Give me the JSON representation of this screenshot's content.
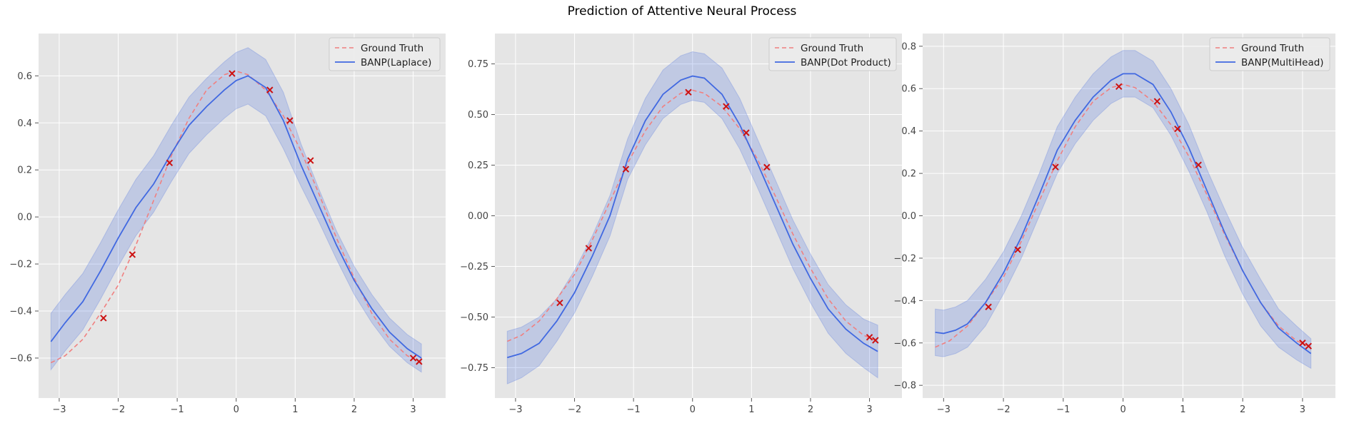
{
  "figure": {
    "title": "Prediction of Attentive Neural Process"
  },
  "style": {
    "plot_bg": "#e5e5e5",
    "grid": "#ffffff",
    "ground_truth_color": "#f08080",
    "prediction_color": "#4169e1",
    "band_color": "#4169e1",
    "context_color": "#cc1111"
  },
  "chart_data": [
    {
      "type": "line",
      "title": "",
      "xlabel": "",
      "ylabel": "",
      "xlim": [
        -3.35,
        3.55
      ],
      "ylim": [
        -0.77,
        0.78
      ],
      "xticks": [
        -3,
        -2,
        -1,
        0,
        1,
        2,
        3
      ],
      "yticks": [
        -0.6,
        -0.4,
        -0.2,
        0.0,
        0.2,
        0.4,
        0.6
      ],
      "ytick_labels": [
        "−0.6",
        "−0.4",
        "−0.2",
        "0.0",
        "0.2",
        "0.4",
        "0.6"
      ],
      "grid": true,
      "legend": {
        "placement": "top-right",
        "entries": [
          "Ground Truth",
          "BANP(Laplace)"
        ]
      },
      "ground_truth": {
        "name": "Ground Truth",
        "x": [
          -3.14,
          -2.9,
          -2.6,
          -2.3,
          -2.0,
          -1.7,
          -1.4,
          -1.1,
          -0.8,
          -0.5,
          -0.2,
          0.0,
          0.2,
          0.5,
          0.8,
          1.1,
          1.4,
          1.7,
          2.0,
          2.3,
          2.6,
          2.9,
          3.14
        ],
        "y": [
          -0.62,
          -0.59,
          -0.52,
          -0.41,
          -0.29,
          -0.12,
          0.07,
          0.26,
          0.42,
          0.54,
          0.605,
          0.62,
          0.605,
          0.54,
          0.43,
          0.28,
          0.1,
          -0.09,
          -0.26,
          -0.41,
          -0.52,
          -0.59,
          -0.62
        ]
      },
      "prediction": {
        "name": "BANP(Laplace)",
        "x": [
          -3.14,
          -2.9,
          -2.6,
          -2.3,
          -2.0,
          -1.7,
          -1.4,
          -1.1,
          -0.8,
          -0.5,
          -0.2,
          0.0,
          0.2,
          0.5,
          0.8,
          1.1,
          1.4,
          1.7,
          2.0,
          2.3,
          2.6,
          2.9,
          3.14
        ],
        "y": [
          -0.53,
          -0.45,
          -0.36,
          -0.23,
          -0.09,
          0.04,
          0.14,
          0.27,
          0.39,
          0.47,
          0.54,
          0.58,
          0.6,
          0.55,
          0.41,
          0.22,
          0.05,
          -0.12,
          -0.27,
          -0.39,
          -0.49,
          -0.56,
          -0.6
        ],
        "std": [
          0.12,
          0.12,
          0.12,
          0.12,
          0.12,
          0.12,
          0.12,
          0.12,
          0.12,
          0.12,
          0.12,
          0.12,
          0.12,
          0.12,
          0.12,
          0.09,
          0.07,
          0.06,
          0.06,
          0.06,
          0.06,
          0.06,
          0.06
        ]
      },
      "context_points": {
        "x": [
          -2.25,
          -1.76,
          -1.13,
          -0.07,
          0.57,
          0.91,
          1.26,
          3.0,
          3.1
        ],
        "y": [
          -0.43,
          -0.16,
          0.23,
          0.61,
          0.54,
          0.41,
          0.24,
          -0.6,
          -0.615
        ]
      }
    },
    {
      "type": "line",
      "title": "",
      "xlabel": "",
      "ylabel": "",
      "xlim": [
        -3.35,
        3.55
      ],
      "ylim": [
        -0.9,
        0.9
      ],
      "xticks": [
        -3,
        -2,
        -1,
        0,
        1,
        2,
        3
      ],
      "yticks": [
        -0.75,
        -0.5,
        -0.25,
        0.0,
        0.25,
        0.5,
        0.75
      ],
      "ytick_labels": [
        "−0.75",
        "−0.50",
        "−0.25",
        "0.00",
        "0.25",
        "0.50",
        "0.75"
      ],
      "grid": true,
      "legend": {
        "placement": "top-right",
        "entries": [
          "Ground Truth",
          "BANP(Dot Product)"
        ]
      },
      "ground_truth": {
        "name": "Ground Truth",
        "x": [
          -3.14,
          -2.9,
          -2.6,
          -2.3,
          -2.0,
          -1.7,
          -1.4,
          -1.1,
          -0.8,
          -0.5,
          -0.2,
          0.0,
          0.2,
          0.5,
          0.8,
          1.1,
          1.4,
          1.7,
          2.0,
          2.3,
          2.6,
          2.9,
          3.14
        ],
        "y": [
          -0.62,
          -0.59,
          -0.52,
          -0.41,
          -0.29,
          -0.12,
          0.07,
          0.26,
          0.42,
          0.54,
          0.605,
          0.62,
          0.605,
          0.54,
          0.43,
          0.28,
          0.1,
          -0.09,
          -0.26,
          -0.41,
          -0.52,
          -0.59,
          -0.62
        ]
      },
      "prediction": {
        "name": "BANP(Dot Product)",
        "x": [
          -3.14,
          -2.9,
          -2.6,
          -2.3,
          -2.0,
          -1.7,
          -1.4,
          -1.1,
          -0.8,
          -0.5,
          -0.2,
          0.0,
          0.2,
          0.5,
          0.8,
          1.1,
          1.4,
          1.7,
          2.0,
          2.3,
          2.6,
          2.9,
          3.14
        ],
        "y": [
          -0.7,
          -0.68,
          -0.63,
          -0.52,
          -0.38,
          -0.2,
          0.0,
          0.28,
          0.47,
          0.6,
          0.67,
          0.69,
          0.68,
          0.6,
          0.45,
          0.26,
          0.06,
          -0.14,
          -0.31,
          -0.46,
          -0.56,
          -0.63,
          -0.67
        ]
      },
      "band": {
        "x": [
          -3.14,
          -2.9,
          -2.6,
          -2.3,
          -2.0,
          -1.7,
          -1.4,
          -1.1,
          -0.8,
          -0.5,
          -0.2,
          0.0,
          0.2,
          0.5,
          0.8,
          1.1,
          1.4,
          1.7,
          2.0,
          2.3,
          2.6,
          2.9,
          3.14
        ],
        "lower": [
          -0.83,
          -0.8,
          -0.74,
          -0.62,
          -0.48,
          -0.3,
          -0.1,
          0.18,
          0.35,
          0.48,
          0.55,
          0.57,
          0.56,
          0.48,
          0.33,
          0.14,
          -0.06,
          -0.26,
          -0.43,
          -0.58,
          -0.68,
          -0.75,
          -0.8
        ],
        "upper": [
          -0.57,
          -0.55,
          -0.5,
          -0.41,
          -0.27,
          -0.1,
          0.1,
          0.38,
          0.58,
          0.72,
          0.79,
          0.81,
          0.8,
          0.73,
          0.58,
          0.38,
          0.18,
          -0.02,
          -0.19,
          -0.34,
          -0.44,
          -0.51,
          -0.54
        ]
      },
      "context_points": {
        "x": [
          -2.25,
          -1.76,
          -1.13,
          -0.07,
          0.57,
          0.91,
          1.26,
          3.0,
          3.1
        ],
        "y": [
          -0.43,
          -0.16,
          0.23,
          0.61,
          0.54,
          0.41,
          0.24,
          -0.6,
          -0.615
        ]
      }
    },
    {
      "type": "line",
      "title": "",
      "xlabel": "",
      "ylabel": "",
      "xlim": [
        -3.35,
        3.55
      ],
      "ylim": [
        -0.86,
        0.86
      ],
      "xticks": [
        -3,
        -2,
        -1,
        0,
        1,
        2,
        3
      ],
      "yticks": [
        -0.8,
        -0.6,
        -0.4,
        -0.2,
        0.0,
        0.2,
        0.4,
        0.6,
        0.8
      ],
      "ytick_labels": [
        "−0.8",
        "−0.6",
        "−0.4",
        "−0.2",
        "0.0",
        "0.2",
        "0.4",
        "0.6",
        "0.8"
      ],
      "grid": true,
      "legend": {
        "placement": "top-right",
        "entries": [
          "Ground Truth",
          "BANP(MultiHead)"
        ]
      },
      "ground_truth": {
        "name": "Ground Truth",
        "x": [
          -3.14,
          -2.9,
          -2.6,
          -2.3,
          -2.0,
          -1.7,
          -1.4,
          -1.1,
          -0.8,
          -0.5,
          -0.2,
          0.0,
          0.2,
          0.5,
          0.8,
          1.1,
          1.4,
          1.7,
          2.0,
          2.3,
          2.6,
          2.9,
          3.14
        ],
        "y": [
          -0.62,
          -0.59,
          -0.52,
          -0.41,
          -0.29,
          -0.12,
          0.07,
          0.26,
          0.42,
          0.54,
          0.605,
          0.62,
          0.605,
          0.54,
          0.43,
          0.28,
          0.1,
          -0.09,
          -0.26,
          -0.41,
          -0.52,
          -0.59,
          -0.62
        ]
      },
      "prediction": {
        "name": "BANP(MultiHead)",
        "x": [
          -3.14,
          -3.0,
          -2.8,
          -2.6,
          -2.3,
          -2.0,
          -1.7,
          -1.4,
          -1.1,
          -0.8,
          -0.5,
          -0.2,
          0.0,
          0.2,
          0.5,
          0.8,
          1.1,
          1.4,
          1.7,
          2.0,
          2.3,
          2.6,
          2.9,
          3.14
        ],
        "y": [
          -0.55,
          -0.555,
          -0.54,
          -0.51,
          -0.41,
          -0.27,
          -0.1,
          0.1,
          0.31,
          0.45,
          0.56,
          0.64,
          0.67,
          0.67,
          0.62,
          0.49,
          0.32,
          0.12,
          -0.08,
          -0.26,
          -0.41,
          -0.53,
          -0.6,
          -0.65
        ]
      },
      "band": {
        "x": [
          -3.14,
          -3.0,
          -2.8,
          -2.6,
          -2.3,
          -2.0,
          -1.7,
          -1.4,
          -1.1,
          -0.8,
          -0.5,
          -0.2,
          0.0,
          0.2,
          0.5,
          0.8,
          1.1,
          1.4,
          1.7,
          2.0,
          2.3,
          2.6,
          2.9,
          3.14
        ],
        "lower": [
          -0.66,
          -0.665,
          -0.65,
          -0.62,
          -0.52,
          -0.37,
          -0.2,
          0.0,
          0.2,
          0.34,
          0.45,
          0.53,
          0.56,
          0.56,
          0.51,
          0.38,
          0.21,
          0.02,
          -0.19,
          -0.37,
          -0.52,
          -0.62,
          -0.68,
          -0.72
        ],
        "upper": [
          -0.44,
          -0.445,
          -0.43,
          -0.4,
          -0.3,
          -0.17,
          0.0,
          0.2,
          0.42,
          0.56,
          0.67,
          0.75,
          0.78,
          0.78,
          0.73,
          0.6,
          0.43,
          0.22,
          0.03,
          -0.15,
          -0.3,
          -0.44,
          -0.52,
          -0.58
        ]
      },
      "context_points": {
        "x": [
          -2.25,
          -1.76,
          -1.13,
          -0.07,
          0.57,
          0.91,
          1.26,
          3.0,
          3.1
        ],
        "y": [
          -0.43,
          -0.16,
          0.23,
          0.61,
          0.54,
          0.41,
          0.24,
          -0.6,
          -0.615
        ]
      }
    }
  ]
}
